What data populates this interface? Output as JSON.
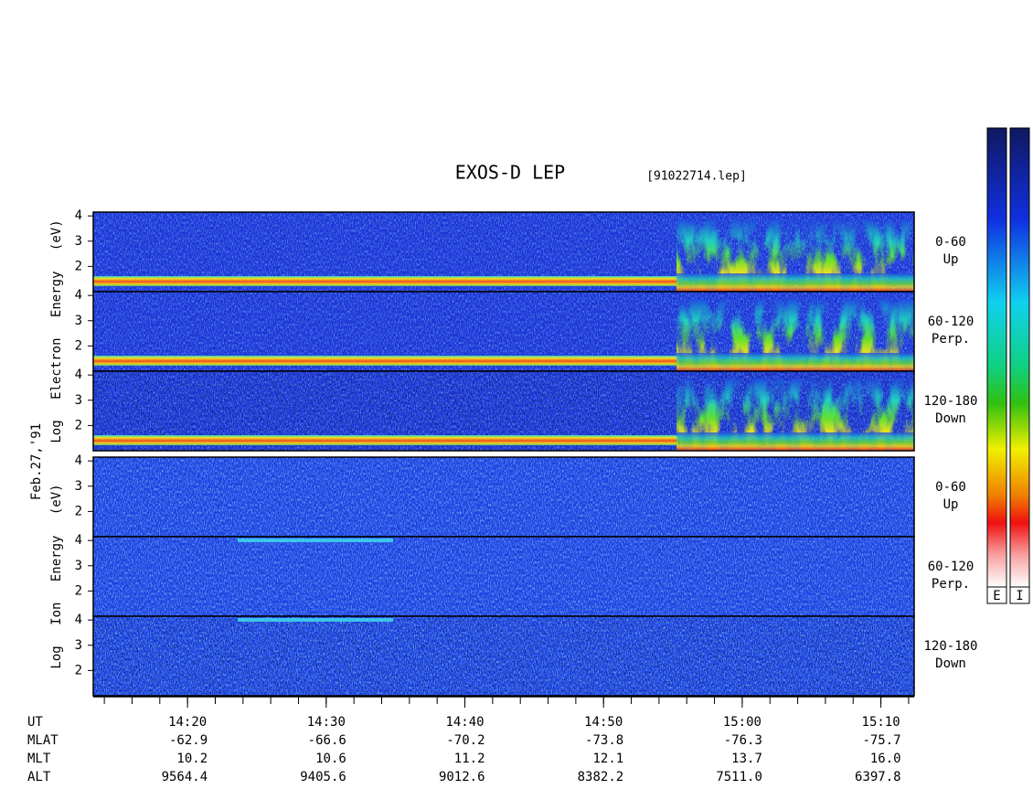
{
  "title": "EXOS-D LEP",
  "file": "[91022714.lep]",
  "date": "Feb.27,'91",
  "colorbars": [
    "E",
    "I"
  ],
  "groups": [
    {
      "y_label": "Log Electron Energy (eV)",
      "panels": [
        {
          "angle": "0-60",
          "direction": "Up"
        },
        {
          "angle": "60-120",
          "direction": "Perp."
        },
        {
          "angle": "120-180",
          "direction": "Down"
        }
      ]
    },
    {
      "y_label": "Log Ion Energy (eV)",
      "panels": [
        {
          "angle": "0-60",
          "direction": "Up"
        },
        {
          "angle": "60-120",
          "direction": "Perp."
        },
        {
          "angle": "120-180",
          "direction": "Down"
        }
      ]
    }
  ],
  "ylim": [
    1,
    4.15
  ],
  "yticks": [
    2,
    3,
    4
  ],
  "xlim": [
    853.2,
    912.4
  ],
  "xticks": [
    {
      "value": 860,
      "label": "14:20"
    },
    {
      "value": 870,
      "label": "14:30"
    },
    {
      "value": 880,
      "label": "14:40"
    },
    {
      "value": 890,
      "label": "14:50"
    },
    {
      "value": 900,
      "label": "15:00"
    },
    {
      "value": 910,
      "label": "15:10"
    }
  ],
  "rows": [
    {
      "label": "UT"
    },
    {
      "label": "MLAT",
      "values": [
        "-62.9",
        "-66.6",
        "-70.2",
        "-73.8",
        "-76.3",
        "-75.7"
      ]
    },
    {
      "label": "MLT",
      "values": [
        "10.2",
        "10.6",
        "11.2",
        "12.1",
        "13.7",
        "16.0"
      ]
    },
    {
      "label": "ALT",
      "values": [
        "9564.4",
        "9405.6",
        "9012.6",
        "8382.2",
        "7511.0",
        "6397.8"
      ]
    }
  ]
}
